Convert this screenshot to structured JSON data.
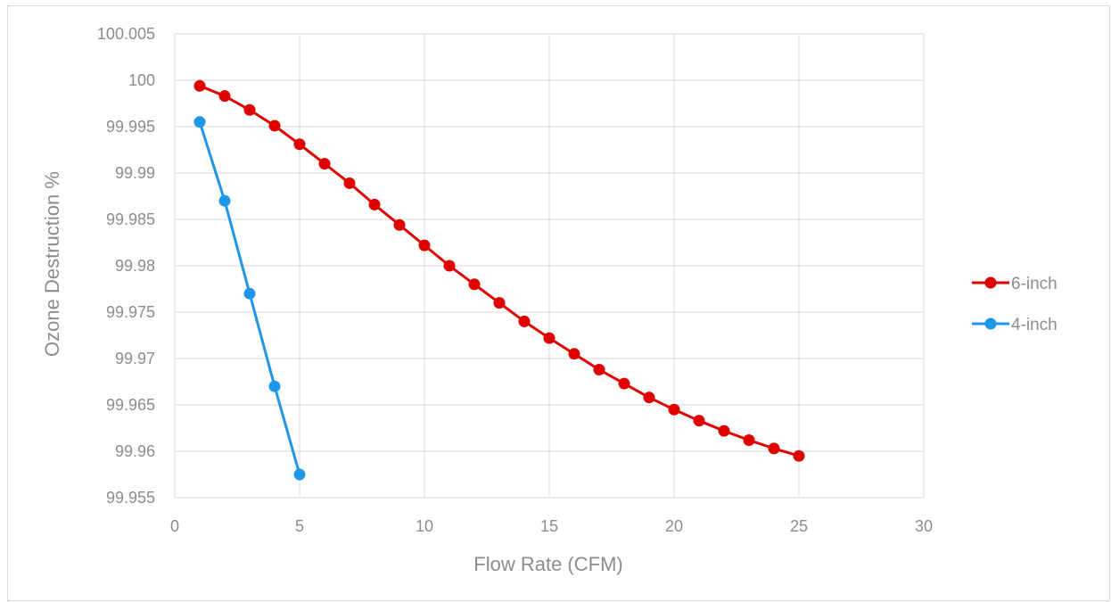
{
  "chart_data": {
    "type": "line",
    "title": "",
    "xlabel": "Flow Rate (CFM)",
    "ylabel": "Ozone Destruction %",
    "xlim": [
      0,
      30
    ],
    "ylim": [
      99.955,
      100.005
    ],
    "x_ticks": [
      "0",
      "5",
      "10",
      "15",
      "20",
      "25",
      "30"
    ],
    "y_ticks": [
      "99.955",
      "99.96",
      "99.965",
      "99.97",
      "99.975",
      "99.98",
      "99.985",
      "99.99",
      "99.995",
      "100",
      "100.005"
    ],
    "grid": true,
    "legend_position": "right",
    "series": [
      {
        "name": "6-inch",
        "color": "#e00000",
        "x": [
          1,
          2,
          3,
          4,
          5,
          6,
          7,
          8,
          9,
          10,
          11,
          12,
          13,
          14,
          15,
          16,
          17,
          18,
          19,
          20,
          21,
          22,
          23,
          24,
          25
        ],
        "y": [
          99.9994,
          99.9983,
          99.9968,
          99.9951,
          99.9931,
          99.991,
          99.9889,
          99.9866,
          99.9844,
          99.9822,
          99.98,
          99.978,
          99.976,
          99.974,
          99.9722,
          99.9705,
          99.9688,
          99.9673,
          99.9658,
          99.9645,
          99.9633,
          99.9622,
          99.9612,
          99.9603,
          99.9595
        ]
      },
      {
        "name": "4-inch",
        "color": "#1f96e8",
        "x": [
          1,
          2,
          3,
          4,
          5
        ],
        "y": [
          99.9955,
          99.987,
          99.977,
          99.967,
          99.9575
        ]
      }
    ]
  }
}
